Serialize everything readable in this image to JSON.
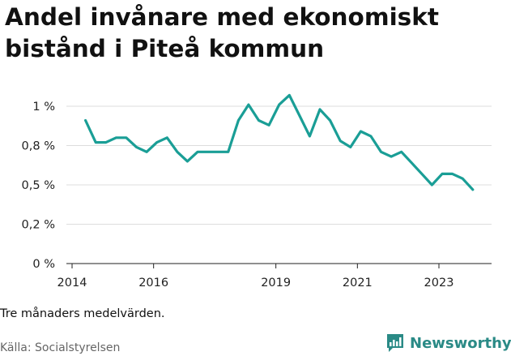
{
  "header": {
    "title_line1": "Andel invånare med ekonomiskt",
    "title_line2": "bistånd i Piteå kommun"
  },
  "footer": {
    "note": "Tre månaders medelvärden.",
    "source": "Källa: Socialstyrelsen",
    "brand": "Newsworthy",
    "brand_icon": "newsworthy-logo-icon"
  },
  "colors": {
    "line": "#1a9e96",
    "grid": "#dddddd",
    "text": "#111111",
    "brand": "#2a8a86"
  },
  "chart_data": {
    "type": "line",
    "title": "Andel invånare med ekonomiskt bistånd i Piteå kommun",
    "xlabel": "",
    "ylabel": "",
    "ylim": [
      0,
      1.0
    ],
    "xlim": [
      2014.0,
      2024.7
    ],
    "grid": true,
    "y_ticks": [
      {
        "value": 0,
        "label": "0 %"
      },
      {
        "value": 0.25,
        "label": "0,2 %"
      },
      {
        "value": 0.5,
        "label": "0,5 %"
      },
      {
        "value": 0.75,
        "label": "0,8 %"
      },
      {
        "value": 1.0,
        "label": "1 %"
      }
    ],
    "x_ticks": [
      {
        "value": 2014.0,
        "label": "2014"
      },
      {
        "value": 2016.0,
        "label": "2016"
      },
      {
        "value": 2019.0,
        "label": "2019"
      },
      {
        "value": 2021.0,
        "label": "2021"
      },
      {
        "value": 2023.0,
        "label": "2023"
      }
    ],
    "series": [
      {
        "x": [
          2014.33,
          2014.58,
          2014.83,
          2015.08,
          2015.33,
          2015.58,
          2015.83,
          2016.08,
          2016.33,
          2016.58,
          2016.83,
          2017.08,
          2017.33,
          2017.58,
          2017.83,
          2018.08,
          2018.33,
          2018.58,
          2018.83,
          2019.08,
          2019.33,
          2019.58,
          2019.83,
          2020.08,
          2020.33,
          2020.58,
          2020.83,
          2021.08,
          2021.33,
          2021.58,
          2021.83,
          2022.08,
          2022.33,
          2022.58,
          2022.83,
          2023.08,
          2023.33,
          2023.58,
          2023.83
        ],
        "values": [
          0.91,
          0.77,
          0.77,
          0.8,
          0.8,
          0.74,
          0.71,
          0.77,
          0.8,
          0.71,
          0.65,
          0.71,
          0.71,
          0.71,
          0.71,
          0.91,
          1.01,
          0.91,
          0.88,
          1.01,
          1.07,
          0.94,
          0.81,
          0.98,
          0.91,
          0.78,
          0.74,
          0.84,
          0.81,
          0.71,
          0.68,
          0.71,
          0.64,
          0.57,
          0.5,
          0.57,
          0.57,
          0.54,
          0.47
        ]
      }
    ]
  }
}
